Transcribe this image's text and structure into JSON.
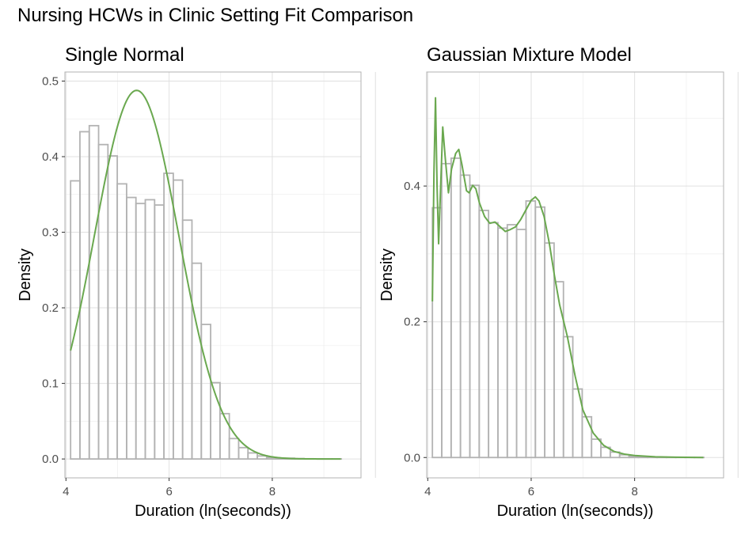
{
  "title": "Nursing HCWs in Clinic Setting Fit Comparison",
  "chart_data": [
    {
      "type": "bar",
      "subtitle": "Single Normal",
      "xlabel": "Duration (ln(seconds))",
      "ylabel": "Density",
      "xlim": [
        3.98,
        9.72
      ],
      "ylim": [
        -0.025,
        0.512
      ],
      "xticks": [
        4,
        6,
        8
      ],
      "xtick_labels": [
        "4",
        "6",
        "8"
      ],
      "yticks": [
        0.0,
        0.1,
        0.2,
        0.3,
        0.4,
        0.5
      ],
      "ytick_labels": [
        "0.0",
        "0.1",
        "0.2",
        "0.3",
        "0.4",
        "0.5"
      ],
      "grid": true,
      "bar_outline_color": "#b3b3b3",
      "line_color": "#6aa84f",
      "histogram": {
        "bin_start": 4.09,
        "bin_width": 0.181,
        "densities": [
          0.368,
          0.433,
          0.441,
          0.416,
          0.401,
          0.364,
          0.346,
          0.338,
          0.343,
          0.336,
          0.378,
          0.369,
          0.316,
          0.259,
          0.178,
          0.101,
          0.06,
          0.027,
          0.015,
          0.008,
          0.004,
          0.002,
          0.001,
          0.001,
          0.0005,
          0.0003,
          0.0002,
          0.0001,
          0.0001,
          0.0
        ]
      },
      "fit": {
        "name": "Single Normal",
        "model": "normal",
        "mean": 5.37,
        "sd": 0.818,
        "x_range": [
          4.09,
          9.33
        ]
      }
    },
    {
      "type": "bar",
      "subtitle": "Gaussian Mixture Model",
      "xlabel": "Duration (ln(seconds))",
      "ylabel": "Density",
      "xlim": [
        3.98,
        9.72
      ],
      "ylim": [
        -0.03,
        0.568
      ],
      "xticks": [
        4,
        6,
        8
      ],
      "xtick_labels": [
        "4",
        "6",
        "8"
      ],
      "yticks": [
        0.0,
        0.2,
        0.4
      ],
      "ytick_labels": [
        "0.0",
        "0.2",
        "0.4"
      ],
      "grid": true,
      "bar_outline_color": "#b3b3b3",
      "line_color": "#6aa84f",
      "histogram": {
        "bin_start": 4.09,
        "bin_width": 0.181,
        "densities": [
          0.368,
          0.433,
          0.441,
          0.416,
          0.401,
          0.364,
          0.346,
          0.338,
          0.343,
          0.336,
          0.378,
          0.369,
          0.316,
          0.259,
          0.178,
          0.101,
          0.06,
          0.027,
          0.015,
          0.008,
          0.004,
          0.002,
          0.001,
          0.001,
          0.0005,
          0.0003,
          0.0002,
          0.0001,
          0.0001,
          0.0
        ]
      },
      "fit": {
        "name": "Gaussian Mixture Model",
        "model": "curve",
        "points": [
          [
            4.09,
            0.23
          ],
          [
            4.12,
            0.42
          ],
          [
            4.15,
            0.53
          ],
          [
            4.18,
            0.4
          ],
          [
            4.21,
            0.315
          ],
          [
            4.25,
            0.4
          ],
          [
            4.29,
            0.487
          ],
          [
            4.34,
            0.44
          ],
          [
            4.4,
            0.39
          ],
          [
            4.46,
            0.425
          ],
          [
            4.54,
            0.448
          ],
          [
            4.6,
            0.454
          ],
          [
            4.66,
            0.432
          ],
          [
            4.75,
            0.393
          ],
          [
            4.8,
            0.39
          ],
          [
            4.87,
            0.401
          ],
          [
            4.93,
            0.396
          ],
          [
            5.0,
            0.375
          ],
          [
            5.1,
            0.355
          ],
          [
            5.2,
            0.345
          ],
          [
            5.3,
            0.347
          ],
          [
            5.4,
            0.34
          ],
          [
            5.5,
            0.333
          ],
          [
            5.6,
            0.336
          ],
          [
            5.7,
            0.34
          ],
          [
            5.8,
            0.351
          ],
          [
            5.9,
            0.365
          ],
          [
            6.0,
            0.379
          ],
          [
            6.08,
            0.384
          ],
          [
            6.15,
            0.378
          ],
          [
            6.25,
            0.355
          ],
          [
            6.35,
            0.316
          ],
          [
            6.45,
            0.268
          ],
          [
            6.55,
            0.225
          ],
          [
            6.7,
            0.178
          ],
          [
            6.85,
            0.12
          ],
          [
            7.0,
            0.07
          ],
          [
            7.2,
            0.036
          ],
          [
            7.4,
            0.018
          ],
          [
            7.6,
            0.009
          ],
          [
            7.8,
            0.005
          ],
          [
            8.0,
            0.003
          ],
          [
            8.4,
            0.001
          ],
          [
            8.8,
            0.0005
          ],
          [
            9.33,
            0.0
          ]
        ]
      }
    }
  ]
}
